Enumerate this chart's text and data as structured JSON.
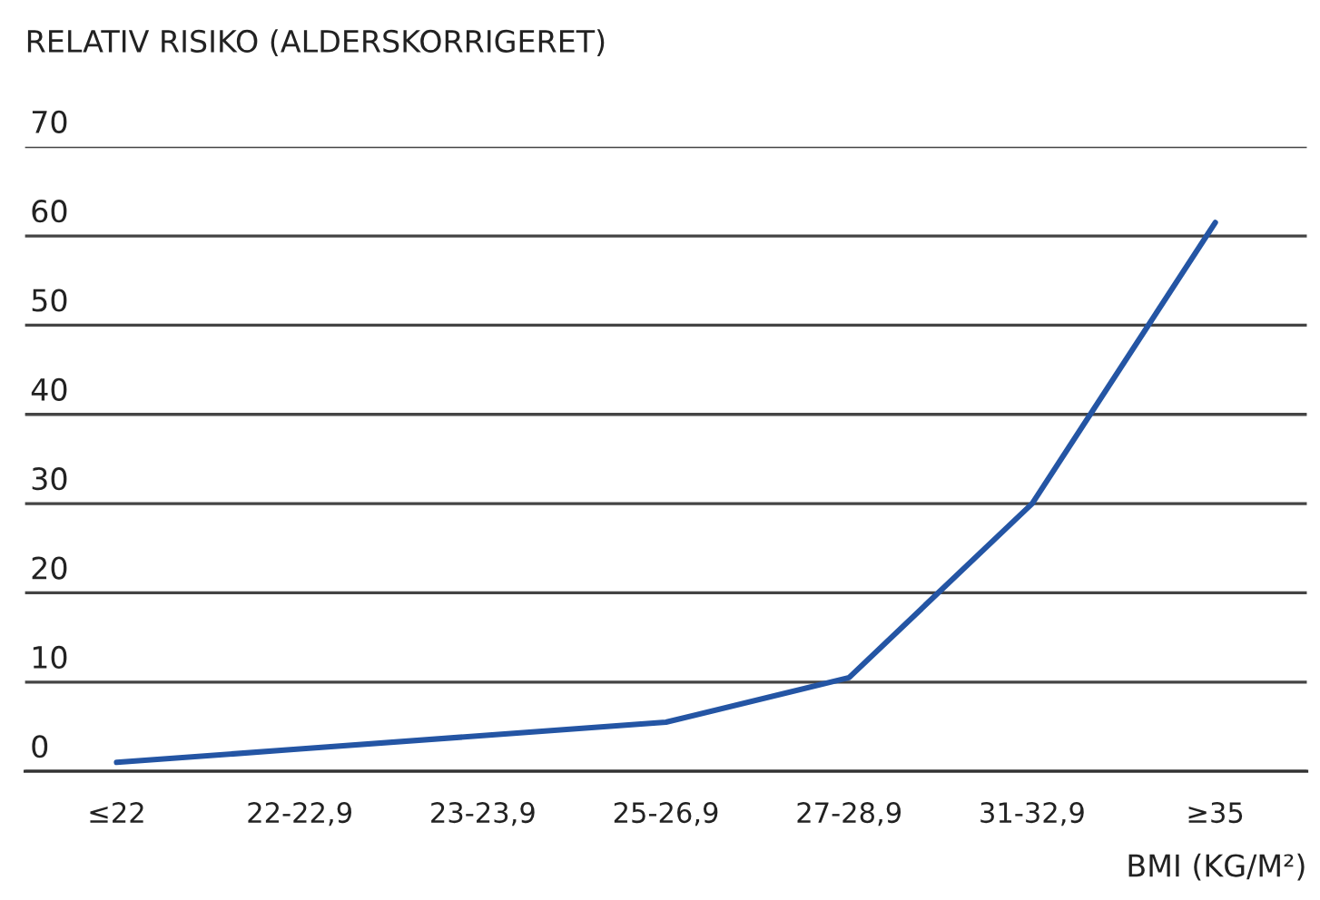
{
  "chart_data": {
    "type": "line",
    "title": "RELATIV RISIKO (ALDERSKORRIGERET)",
    "xlabel": "BMI (KG/M²)",
    "categories": [
      "≤22",
      "22-22,9",
      "23-23,9",
      "25-26,9",
      "27-28,9",
      "31-32,9",
      "≥35"
    ],
    "series": [
      {
        "color": "#2455a4",
        "values": [
          1,
          2.5,
          4,
          5.5,
          10.5,
          30,
          61.5
        ]
      }
    ],
    "ylim": [
      0,
      70
    ],
    "yticks": [
      0,
      10,
      20,
      30,
      40,
      50,
      60,
      70
    ],
    "grid": "y",
    "marker": "none",
    "line_style": "solid",
    "legend": false
  }
}
